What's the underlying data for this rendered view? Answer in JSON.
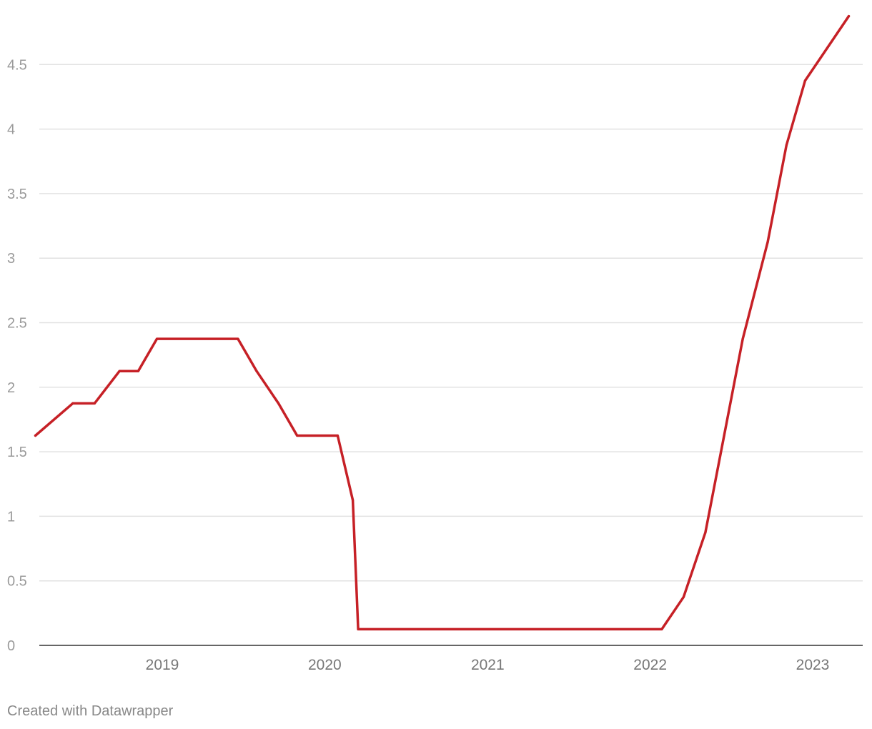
{
  "chart_data": {
    "type": "line",
    "title": "",
    "xlabel": "",
    "ylabel": "",
    "ylim": [
      0,
      5
    ],
    "yticks": [
      "0",
      "0.5",
      "1",
      "1.5",
      "2",
      "2.5",
      "3",
      "3.5",
      "4",
      "4.5"
    ],
    "xticks": [
      "2019",
      "2020",
      "2021",
      "2022",
      "2023"
    ],
    "grid": true,
    "legend": "none",
    "series": [
      {
        "color": "#c62026",
        "points": [
          {
            "x": "2018-03-22",
            "y": 1.625
          },
          {
            "x": "2018-06-14",
            "y": 1.875
          },
          {
            "x": "2018-08-02",
            "y": 1.875
          },
          {
            "x": "2018-09-27",
            "y": 2.125
          },
          {
            "x": "2018-11-08",
            "y": 2.125
          },
          {
            "x": "2018-12-20",
            "y": 2.375
          },
          {
            "x": "2019-06-20",
            "y": 2.375
          },
          {
            "x": "2019-08-01",
            "y": 2.125
          },
          {
            "x": "2019-09-19",
            "y": 1.875
          },
          {
            "x": "2019-10-31",
            "y": 1.625
          },
          {
            "x": "2020-01-30",
            "y": 1.625
          },
          {
            "x": "2020-03-04",
            "y": 1.125
          },
          {
            "x": "2020-03-16",
            "y": 0.125
          },
          {
            "x": "2022-01-27",
            "y": 0.125
          },
          {
            "x": "2022-03-17",
            "y": 0.375
          },
          {
            "x": "2022-05-05",
            "y": 0.875
          },
          {
            "x": "2022-06-16",
            "y": 1.625
          },
          {
            "x": "2022-07-28",
            "y": 2.375
          },
          {
            "x": "2022-09-22",
            "y": 3.125
          },
          {
            "x": "2022-11-03",
            "y": 3.875
          },
          {
            "x": "2022-12-15",
            "y": 4.375
          },
          {
            "x": "2023-03-23",
            "y": 4.875
          }
        ]
      }
    ]
  },
  "footer": {
    "credit": "Created with Datawrapper"
  }
}
